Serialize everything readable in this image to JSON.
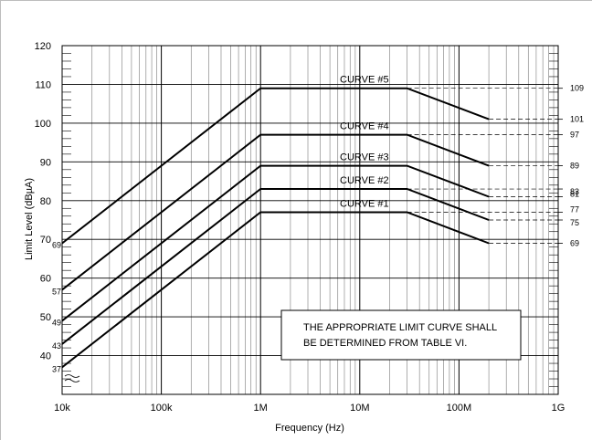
{
  "chart_data": {
    "type": "line",
    "title": "",
    "xlabel": "Frequency (Hz)",
    "ylabel": "Limit Level (dBµA)",
    "x_scale": "log",
    "xlim": [
      10000,
      1000000000
    ],
    "ylim": [
      30,
      120
    ],
    "grid": true,
    "x_ticks": [
      {
        "value": 10000,
        "label": "10k"
      },
      {
        "value": 100000,
        "label": "100k"
      },
      {
        "value": 1000000,
        "label": "1M"
      },
      {
        "value": 10000000,
        "label": "10M"
      },
      {
        "value": 100000000,
        "label": "100M"
      },
      {
        "value": 1000000000,
        "label": "1G"
      }
    ],
    "y_ticks": [
      {
        "value": 40,
        "label": "40"
      },
      {
        "value": 50,
        "label": "50"
      },
      {
        "value": 60,
        "label": "60"
      },
      {
        "value": 70,
        "label": "70"
      },
      {
        "value": 80,
        "label": "80"
      },
      {
        "value": 90,
        "label": "90"
      },
      {
        "value": 100,
        "label": "100"
      },
      {
        "value": 110,
        "label": "110"
      },
      {
        "value": 120,
        "label": "120"
      }
    ],
    "series": [
      {
        "name": "CURVE #1",
        "x": [
          10000,
          1000000,
          30000000,
          200000000
        ],
        "y": [
          37,
          77,
          77,
          69
        ]
      },
      {
        "name": "CURVE #2",
        "x": [
          10000,
          1000000,
          30000000,
          200000000
        ],
        "y": [
          43,
          83,
          83,
          75
        ]
      },
      {
        "name": "CURVE #3",
        "x": [
          10000,
          1000000,
          30000000,
          200000000
        ],
        "y": [
          49,
          89,
          89,
          81
        ]
      },
      {
        "name": "CURVE #4",
        "x": [
          10000,
          1000000,
          30000000,
          200000000
        ],
        "y": [
          57,
          97,
          97,
          89
        ]
      },
      {
        "name": "CURVE #5",
        "x": [
          10000,
          1000000,
          30000000,
          200000000
        ],
        "y": [
          69,
          109,
          109,
          101
        ]
      }
    ],
    "left_value_labels": [
      "37",
      "43",
      "49",
      "57",
      "69"
    ],
    "right_value_labels": [
      "69",
      "75",
      "77",
      "81",
      "83",
      "89",
      "97",
      "101",
      "109"
    ],
    "annotation": {
      "lines": [
        "THE APPROPRIATE LIMIT CURVE SHALL",
        "BE DETERMINED FROM TABLE VI."
      ],
      "position": "bottom-right"
    },
    "colors": {
      "curve": "#000000",
      "grid": "#8c8c8c",
      "dashed": "#000000"
    }
  }
}
